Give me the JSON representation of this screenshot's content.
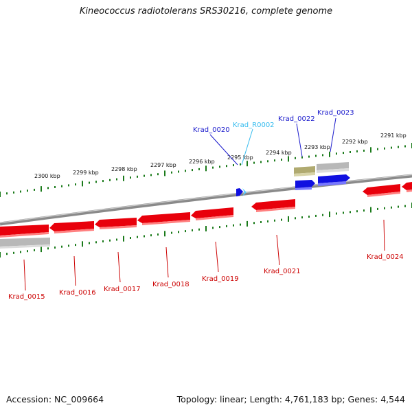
{
  "title": "Kineococcus radiotolerans SRS30216, complete genome",
  "footer": {
    "accession": "Accession: NC_009664",
    "topology": "Topology: linear; Length: 4,761,183 bp; Genes: 4,544"
  },
  "colors": {
    "reverse_gene": "#e8000b",
    "forward_gene": "#1010e0",
    "rna_gene": "#55ccff",
    "pseudo_gene": "#b8b8b8",
    "olive_gene": "#b0aa70",
    "backbone": "#8a8a8a",
    "tick": "#1a7a1a",
    "label_reverse": "#cc0000",
    "label_forward": "#1a1acc",
    "label_rna": "#33bbee"
  },
  "kbp_labels": [
    "2300 kbp",
    "2299 kbp",
    "2298 kbp",
    "2297 kbp",
    "2296 kbp",
    "2295 kbp",
    "2294 kbp",
    "2293 kbp",
    "2292 kbp",
    "2291 kbp"
  ],
  "gene_labels": [
    {
      "id": "krad_0015",
      "text": "Krad_0015",
      "kind": "reverse"
    },
    {
      "id": "krad_0016",
      "text": "Krad_0016",
      "kind": "reverse"
    },
    {
      "id": "krad_0017",
      "text": "Krad_0017",
      "kind": "reverse"
    },
    {
      "id": "krad_0018",
      "text": "Krad_0018",
      "kind": "reverse"
    },
    {
      "id": "krad_0019",
      "text": "Krad_0019",
      "kind": "reverse"
    },
    {
      "id": "krad_0021",
      "text": "Krad_0021",
      "kind": "reverse"
    },
    {
      "id": "krad_0024",
      "text": "Krad_0024",
      "kind": "reverse"
    },
    {
      "id": "krad_0020",
      "text": "Krad_0020",
      "kind": "forward"
    },
    {
      "id": "krad_r0002",
      "text": "Krad_R0002",
      "kind": "rna"
    },
    {
      "id": "krad_0022",
      "text": "Krad_0022",
      "kind": "forward"
    },
    {
      "id": "krad_0023",
      "text": "Krad_0023",
      "kind": "forward"
    }
  ]
}
